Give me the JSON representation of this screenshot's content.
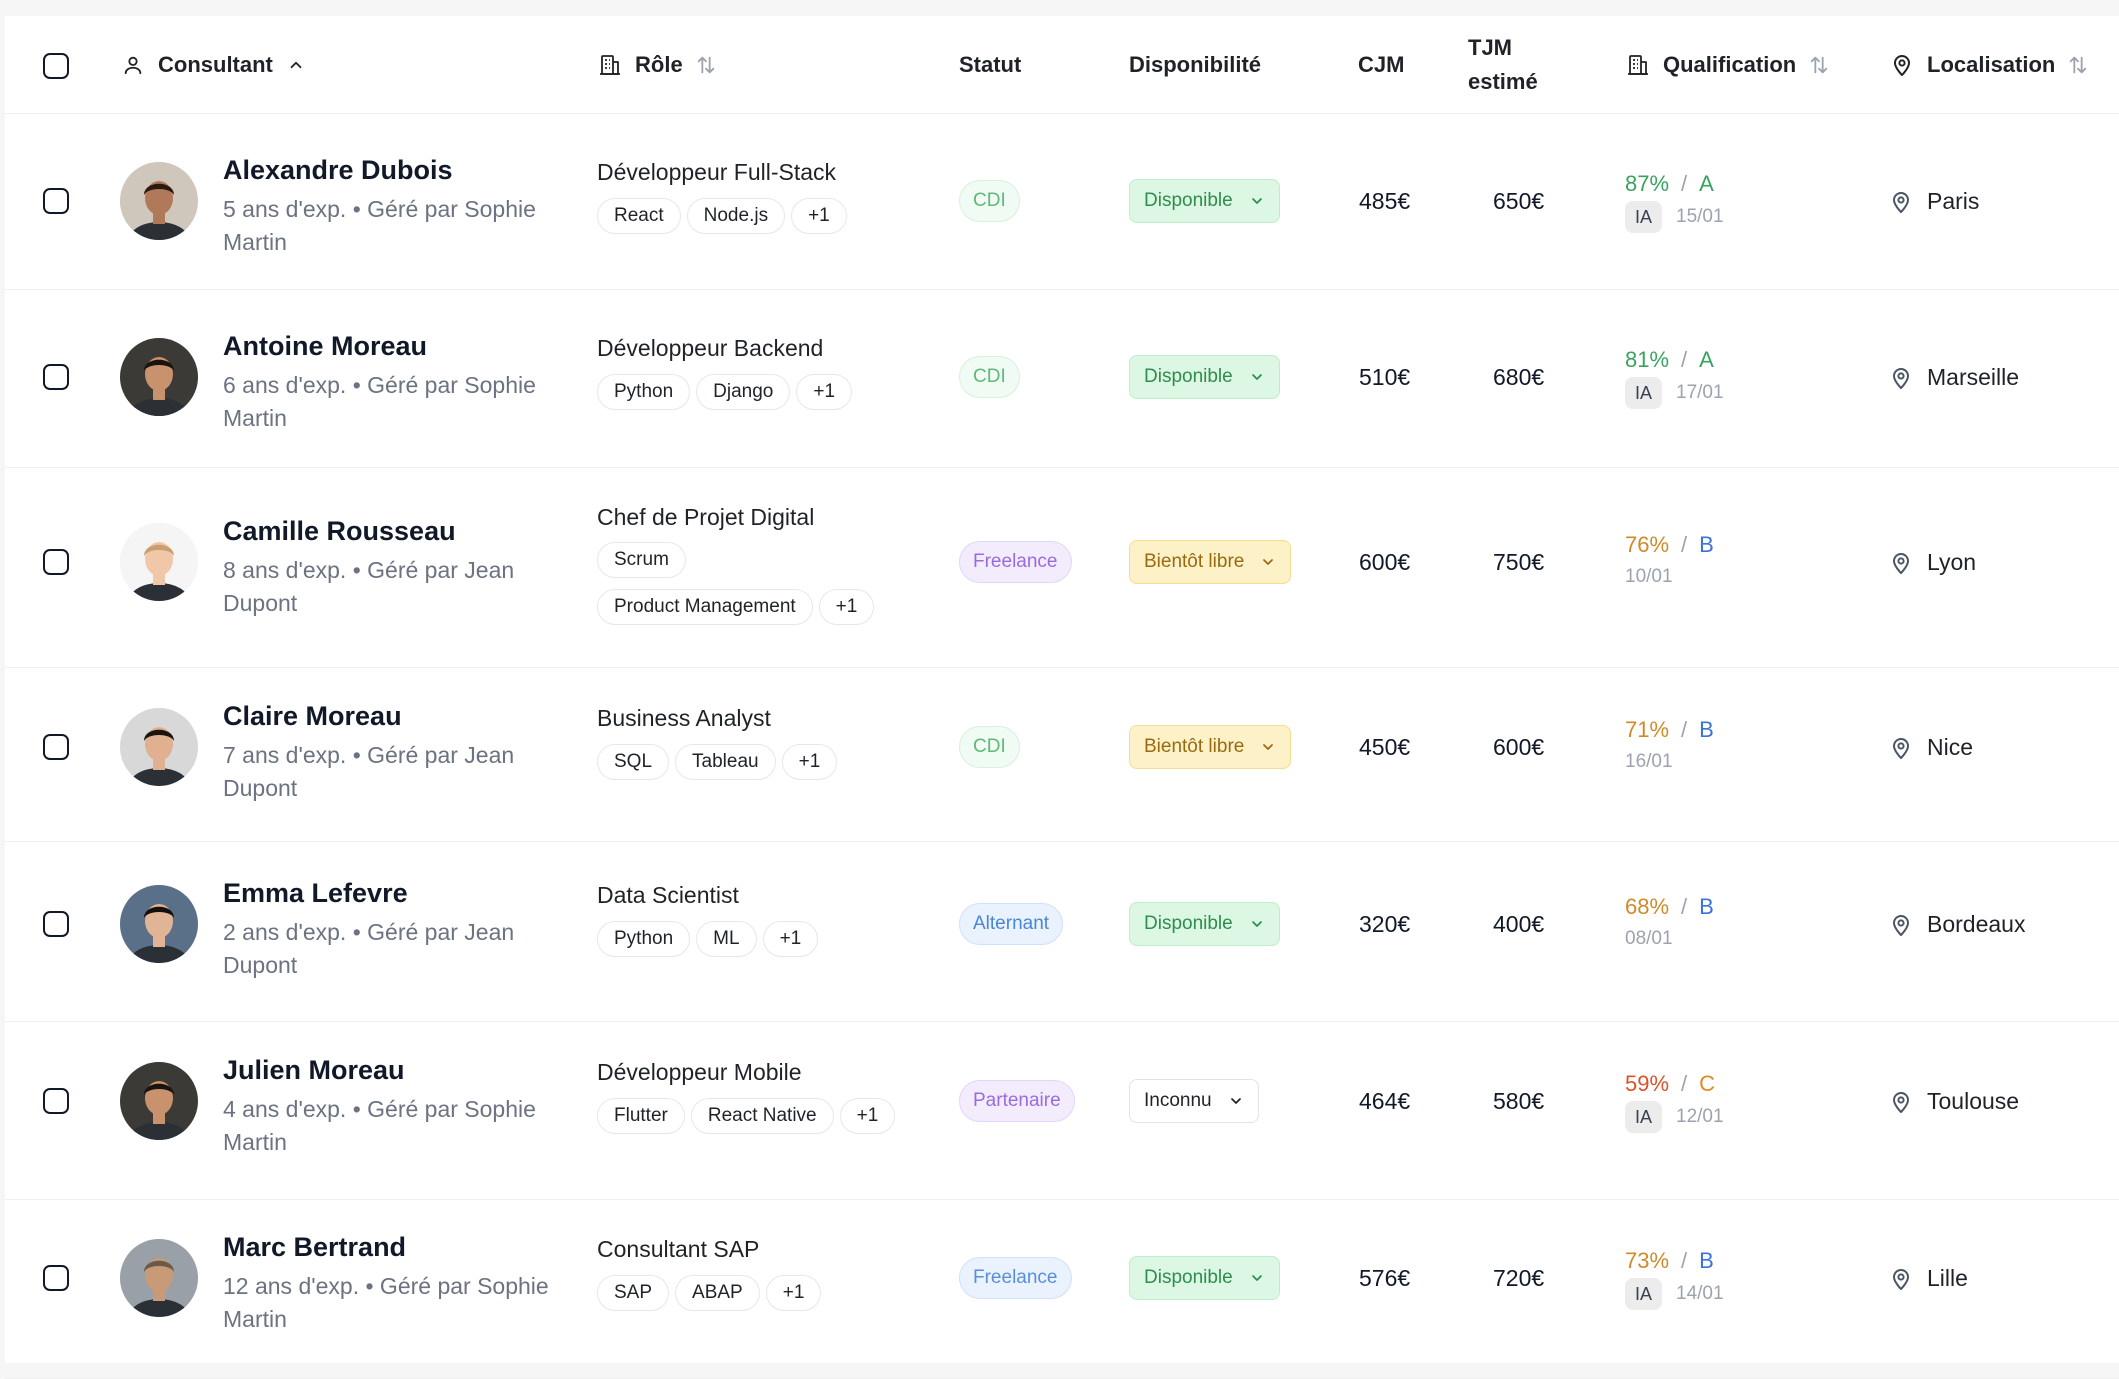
{
  "header": {
    "consultant": "Consultant",
    "role": "Rôle",
    "statut": "Statut",
    "disponibilite": "Disponibilité",
    "cjm": "CJM",
    "tjm_line1": "TJM",
    "tjm_line2": "estimé",
    "qualification": "Qualification",
    "localisation": "Localisation"
  },
  "rows": [
    {
      "name": "Alexandre Dubois",
      "sub": "5 ans d'exp. • Géré par Sophie Martin",
      "role": "Développeur Full-Stack",
      "tags": [
        "React",
        "Node.js",
        "+1"
      ],
      "status": "CDI",
      "status_type": "cdi",
      "dispo": "Disponible",
      "dispo_type": "green",
      "cjm": "485€",
      "tjm": "650€",
      "q_pct": "87%",
      "q_grade": "A",
      "q_level": "high",
      "ia": "IA",
      "date": "15/01",
      "loc": "Paris",
      "avatar_skin": "#b07a5a",
      "avatar_hair": "#2a1a10",
      "avatar_bg": "#cfc6bc"
    },
    {
      "name": "Antoine Moreau",
      "sub": "6 ans d'exp. • Géré par Sophie Martin",
      "role": "Développeur Backend",
      "tags": [
        "Python",
        "Django",
        "+1"
      ],
      "status": "CDI",
      "status_type": "cdi",
      "dispo": "Disponible",
      "dispo_type": "green",
      "cjm": "510€",
      "tjm": "680€",
      "q_pct": "81%",
      "q_grade": "A",
      "q_level": "high",
      "ia": "IA",
      "date": "17/01",
      "loc": "Marseille",
      "avatar_skin": "#c8926c",
      "avatar_hair": "#1a1410",
      "avatar_bg": "#3c3a36"
    },
    {
      "name": "Camille Rousseau",
      "sub": "8 ans d'exp. • Géré par Jean Dupont",
      "role": "Chef de Projet Digital",
      "tags": [
        "Scrum",
        "Product Management",
        "+1"
      ],
      "status": "Freelance",
      "status_type": "freelance",
      "dispo": "Bientôt libre",
      "dispo_type": "yellow",
      "cjm": "600€",
      "tjm": "750€",
      "q_pct": "76%",
      "q_grade": "B",
      "q_level": "mid",
      "ia": "",
      "date": "10/01",
      "loc": "Lyon",
      "avatar_skin": "#f0c8a8",
      "avatar_hair": "#c8a070",
      "avatar_bg": "#f5f5f5"
    },
    {
      "name": "Claire Moreau",
      "sub": "7 ans d'exp. • Géré par Jean Dupont",
      "role": "Business Analyst",
      "tags": [
        "SQL",
        "Tableau",
        "+1"
      ],
      "status": "CDI",
      "status_type": "cdi",
      "dispo": "Bientôt libre",
      "dispo_type": "yellow",
      "cjm": "450€",
      "tjm": "600€",
      "q_pct": "71%",
      "q_grade": "B",
      "q_level": "mid",
      "ia": "",
      "date": "16/01",
      "loc": "Nice",
      "avatar_skin": "#e0b090",
      "avatar_hair": "#1c1410",
      "avatar_bg": "#d8d8d8"
    },
    {
      "name": "Emma Lefevre",
      "sub": "2 ans d'exp. • Géré par Jean Dupont",
      "role": "Data Scientist",
      "tags": [
        "Python",
        "ML",
        "+1"
      ],
      "status": "Alternant",
      "status_type": "alternant",
      "dispo": "Disponible",
      "dispo_type": "green",
      "cjm": "320€",
      "tjm": "400€",
      "q_pct": "68%",
      "q_grade": "B",
      "q_level": "mid",
      "ia": "",
      "date": "08/01",
      "loc": "Bordeaux",
      "avatar_skin": "#e2b496",
      "avatar_hair": "#15100c",
      "avatar_bg": "#5a7088"
    },
    {
      "name": "Julien Moreau",
      "sub": "4 ans d'exp. • Géré par Sophie Martin",
      "role": "Développeur Mobile",
      "tags": [
        "Flutter",
        "React Native",
        "+1"
      ],
      "status": "Partenaire",
      "status_type": "partenaire",
      "dispo": "Inconnu",
      "dispo_type": "gray",
      "cjm": "464€",
      "tjm": "580€",
      "q_pct": "59%",
      "q_grade": "C",
      "q_level": "low",
      "ia": "IA",
      "date": "12/01",
      "loc": "Toulouse",
      "avatar_skin": "#c8926c",
      "avatar_hair": "#1a1410",
      "avatar_bg": "#3c3a36"
    },
    {
      "name": "Marc Bertrand",
      "sub": "12 ans d'exp. • Géré par Sophie Martin",
      "role": "Consultant SAP",
      "tags": [
        "SAP",
        "ABAP",
        "+1"
      ],
      "status": "Freelance",
      "status_type": "freelance2",
      "dispo": "Disponible",
      "dispo_type": "green",
      "cjm": "576€",
      "tjm": "720€",
      "q_pct": "73%",
      "q_grade": "B",
      "q_level": "mid",
      "ia": "IA",
      "date": "14/01",
      "loc": "Lille",
      "avatar_skin": "#c89a78",
      "avatar_hair": "#6a5a4a",
      "avatar_bg": "#9aa0a8"
    }
  ],
  "colors": {
    "cdi": {
      "bg": "#f0fbf3",
      "border": "#d6f1dd",
      "text": "#5fb97a"
    },
    "freelance": {
      "bg": "#f3ecfd",
      "border": "#e3d4fb",
      "text": "#9a6be0"
    },
    "freelance2": {
      "bg": "#eaf2fd",
      "border": "#cfe1fb",
      "text": "#5a8fd8"
    },
    "alternant": {
      "bg": "#eaf2fd",
      "border": "#cfe1fb",
      "text": "#4a86d6"
    },
    "partenaire": {
      "bg": "#f3ecfd",
      "border": "#e3d4fb",
      "text": "#9a6be0"
    },
    "green": {
      "bg": "#dcf7e3",
      "border": "#bfecca",
      "text": "#2f8d4e"
    },
    "yellow": {
      "bg": "#fdf1c8",
      "border": "#f6dd8f",
      "text": "#9a6a10"
    },
    "gray": {
      "bg": "#ffffff",
      "border": "#e3e3e3",
      "text": "#1f2328"
    },
    "q_high_pct": "#3aa35f",
    "q_high_grade": "#3aa35f",
    "q_mid_pct": "#d08a2a",
    "q_mid_grade": "#3b73d8",
    "q_low_pct": "#d9532b",
    "q_low_grade": "#e08a2a"
  },
  "icons": {
    "consultant": "user-icon",
    "role": "building-icon",
    "qualification": "building-icon",
    "localisation": "map-pin-icon",
    "sort_asc": "chevron-up-icon",
    "sort": "sort-arrows-icon",
    "dropdown": "chevron-down-icon"
  }
}
